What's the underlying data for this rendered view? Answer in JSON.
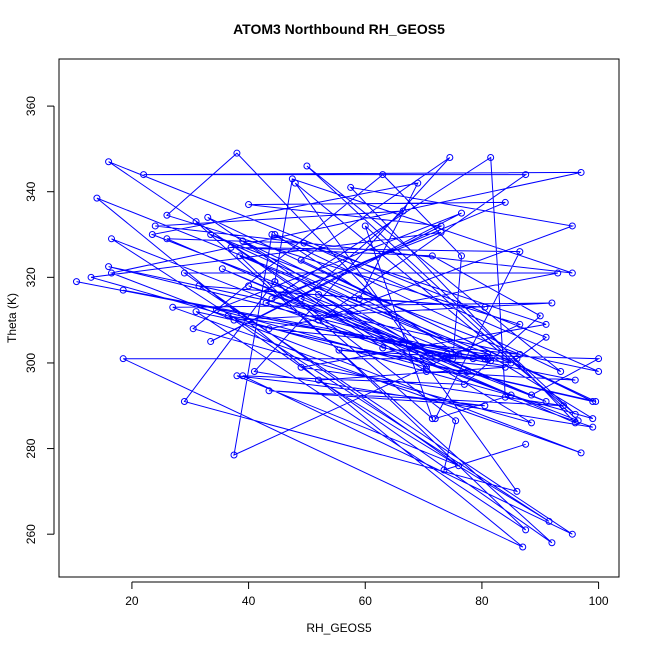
{
  "chart_data": {
    "type": "line",
    "title": "ATOM3 Northbound RH_GEOS5",
    "xlabel": "RH_GEOS5",
    "ylabel": "Theta (K)",
    "xlim": [
      7.5,
      103.5
    ],
    "ylim": [
      250,
      371
    ],
    "xticks": [
      20,
      40,
      60,
      80,
      100
    ],
    "yticks": [
      260,
      280,
      300,
      320,
      340,
      360
    ],
    "grid": false,
    "legend": "none",
    "line_color": "#0000ff",
    "marker": "open-circle",
    "series": [
      {
        "values": [
          [
            10.5,
            319
          ],
          [
            78.5,
            301
          ],
          [
            63,
            303.5
          ],
          [
            16,
            347
          ],
          [
            91,
            306
          ],
          [
            86,
            301
          ],
          [
            18.5,
            301
          ],
          [
            87,
            257
          ],
          [
            14,
            338.5
          ],
          [
            85,
            300
          ],
          [
            74,
            302
          ],
          [
            100,
            301
          ],
          [
            88.5,
            292.5
          ],
          [
            26,
            329
          ],
          [
            49.5,
            328
          ],
          [
            100,
            298
          ],
          [
            16,
            322.5
          ],
          [
            81.5,
            300.5
          ],
          [
            39,
            328.5
          ],
          [
            71,
            302
          ],
          [
            38,
            349
          ],
          [
            26,
            334.5
          ],
          [
            86.5,
            309
          ],
          [
            37.5,
            278.5
          ],
          [
            44,
            330
          ],
          [
            93.5,
            298
          ],
          [
            50,
            346
          ],
          [
            96,
            288
          ],
          [
            48,
            342
          ],
          [
            86,
            270
          ],
          [
            29,
            291
          ],
          [
            44.5,
            319
          ],
          [
            47.5,
            343
          ],
          [
            95.5,
            321
          ],
          [
            24,
            332
          ],
          [
            66.5,
            335.5
          ],
          [
            49,
            315
          ],
          [
            91,
            291
          ],
          [
            40,
            318
          ],
          [
            75,
            301
          ],
          [
            76.5,
            325
          ],
          [
            63,
            344
          ],
          [
            30.5,
            308
          ],
          [
            88.5,
            286
          ],
          [
            52,
            316
          ],
          [
            77.5,
            298
          ],
          [
            35.5,
            322
          ],
          [
            96,
            286
          ],
          [
            57.5,
            341
          ],
          [
            95.5,
            332
          ],
          [
            52,
            310
          ],
          [
            87.5,
            344
          ],
          [
            22,
            344
          ],
          [
            97,
            344.5
          ],
          [
            16.5,
            321
          ],
          [
            97,
            279
          ],
          [
            27,
            313
          ],
          [
            92,
            314
          ],
          [
            37.5,
            310
          ],
          [
            99,
            291
          ],
          [
            49,
            324
          ],
          [
            74.5,
            348
          ],
          [
            41,
            298
          ],
          [
            99,
            285
          ],
          [
            84,
            292
          ],
          [
            81.5,
            348
          ],
          [
            44,
            315
          ],
          [
            73,
            330.5
          ],
          [
            13,
            320
          ],
          [
            99,
            287
          ],
          [
            81,
            302
          ],
          [
            36.5,
            311
          ],
          [
            92,
            258
          ],
          [
            31,
            333
          ],
          [
            70.5,
            298
          ],
          [
            96,
            296
          ],
          [
            18.5,
            317
          ],
          [
            81,
            301
          ],
          [
            38.5,
            325
          ],
          [
            87.5,
            261
          ],
          [
            31,
            312
          ],
          [
            99.5,
            291
          ],
          [
            33,
            334
          ],
          [
            70.5,
            299
          ],
          [
            34.5,
            312.5
          ],
          [
            76.5,
            335
          ],
          [
            33.5,
            305
          ],
          [
            73,
            332
          ],
          [
            40,
            337
          ],
          [
            84,
            337.5
          ],
          [
            43,
            314
          ],
          [
            85,
            292.5
          ],
          [
            72,
            287
          ],
          [
            86.5,
            326
          ],
          [
            37,
            327
          ],
          [
            71.5,
            325
          ],
          [
            90,
            311
          ],
          [
            77,
            295
          ],
          [
            39,
            297
          ],
          [
            95.5,
            260
          ],
          [
            31.5,
            318
          ],
          [
            80.5,
            313
          ],
          [
            59,
            315
          ],
          [
            69,
            342
          ],
          [
            23.5,
            330
          ],
          [
            76,
            302
          ],
          [
            44.5,
            330
          ],
          [
            91,
            309
          ],
          [
            49,
            299
          ],
          [
            94,
            290
          ],
          [
            43.5,
            293.5
          ],
          [
            80.5,
            290
          ],
          [
            38,
            297
          ],
          [
            76,
            276
          ],
          [
            29,
            321
          ],
          [
            93,
            321
          ],
          [
            43.5,
            308
          ],
          [
            86.5,
            302
          ],
          [
            33.5,
            330
          ],
          [
            80.5,
            301
          ],
          [
            55.5,
            303
          ],
          [
            84,
            299
          ],
          [
            52,
            296
          ],
          [
            91.5,
            263
          ],
          [
            16.5,
            329
          ],
          [
            96.5,
            286.5
          ],
          [
            60,
            332
          ],
          [
            71.5,
            287
          ],
          [
            44.5,
            319
          ],
          [
            75.5,
            286.5
          ],
          [
            73.5,
            275
          ],
          [
            87.5,
            281
          ]
        ]
      }
    ]
  }
}
